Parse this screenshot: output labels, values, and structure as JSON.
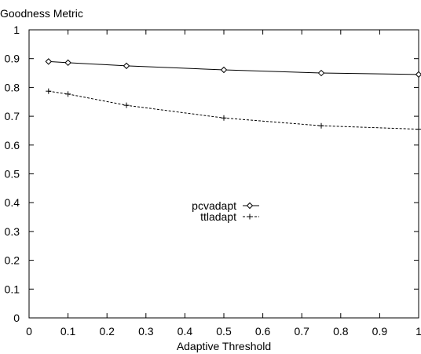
{
  "chart_data": {
    "type": "line",
    "title": "",
    "ylabel": "Goodness Metric",
    "xlabel": "Adaptive Threshold",
    "xlim": [
      0,
      1
    ],
    "ylim": [
      0,
      1
    ],
    "x_ticks": [
      "0",
      "0.1",
      "0.2",
      "0.3",
      "0.4",
      "0.5",
      "0.6",
      "0.7",
      "0.8",
      "0.9",
      "1"
    ],
    "y_ticks": [
      "0",
      "0.1",
      "0.2",
      "0.3",
      "0.4",
      "0.5",
      "0.6",
      "0.7",
      "0.8",
      "0.9",
      "1"
    ],
    "grid": false,
    "legend_position": "center",
    "series": [
      {
        "name": "pcvadapt",
        "marker": "diamond",
        "line_style": "solid",
        "color": "#000000",
        "x": [
          0.05,
          0.1,
          0.25,
          0.5,
          0.75,
          1.0
        ],
        "y": [
          0.89,
          0.886,
          0.875,
          0.861,
          0.85,
          0.845
        ]
      },
      {
        "name": "ttladapt",
        "marker": "plus",
        "line_style": "dashed",
        "color": "#000000",
        "x": [
          0.05,
          0.1,
          0.25,
          0.5,
          0.75,
          1.0
        ],
        "y": [
          0.787,
          0.777,
          0.738,
          0.694,
          0.667,
          0.655
        ]
      }
    ]
  }
}
